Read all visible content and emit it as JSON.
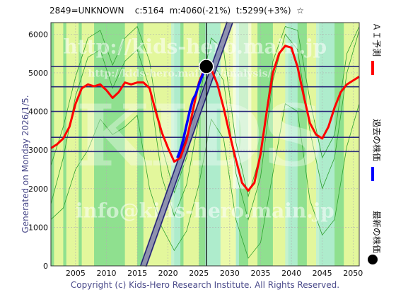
{
  "header": {
    "code": "2849=UNKNOWN",
    "c": "c:5164",
    "m": "m:4060(-21%)",
    "t": "t:5299(+3%)",
    "star": "☆"
  },
  "generated": "Generated on Monday 2026/1/5.",
  "copyright": "Copyright (c) Kids-Hero Research Institute. All Rights Reserved.",
  "watermarks": [
    "http://kids-hero.main.jp",
    "http://kids-hero.main.jp/analysis/",
    "info@kids-hero.main.jp",
    "KIDS"
  ],
  "legend": {
    "ai": "ＡＩ予測",
    "past": "過去の株価",
    "latest": "最新の株価"
  },
  "colors": {
    "ai": "#ff0000",
    "past": "#0000ff",
    "latest": "#000000",
    "hline": "#2a2a7a",
    "band_green": "#8fe08f",
    "band_yellow": "#ffffa0",
    "band_cyan": "#b8f0e0",
    "trend": "#202070"
  },
  "chart_data": {
    "type": "line",
    "xlim": [
      2001,
      2051
    ],
    "ylim": [
      0,
      6300
    ],
    "xticks": [
      2005,
      2010,
      2015,
      2020,
      2025,
      2030,
      2035,
      2040,
      2045,
      2050
    ],
    "yticks": [
      0,
      1000,
      2000,
      3000,
      4000,
      5000,
      6000
    ],
    "hlines": [
      5164,
      4640,
      4000,
      3330,
      2960
    ],
    "vline": 2026.2,
    "latest_point": {
      "x": 2026.2,
      "y": 5164
    },
    "series": [
      {
        "name": "ＡＩ予測",
        "x": [
          2001,
          2002,
          2003,
          2004,
          2005,
          2006,
          2007,
          2008,
          2009,
          2010,
          2011,
          2012,
          2013,
          2014,
          2015,
          2016,
          2017,
          2018,
          2019,
          2020,
          2021,
          2022,
          2023,
          2024,
          2025,
          2026,
          2027,
          2028,
          2029,
          2030,
          2031,
          2032,
          2033,
          2034,
          2035,
          2036,
          2037,
          2038,
          2039,
          2040,
          2041,
          2042,
          2043,
          2044,
          2045,
          2046,
          2047,
          2048,
          2049,
          2050,
          2051
        ],
        "values": [
          3050,
          3150,
          3300,
          3600,
          4200,
          4600,
          4700,
          4650,
          4700,
          4550,
          4350,
          4500,
          4750,
          4700,
          4750,
          4750,
          4600,
          4000,
          3450,
          3050,
          2700,
          2800,
          3250,
          4000,
          4750,
          5150,
          5100,
          4700,
          4100,
          3400,
          2750,
          2150,
          1950,
          2150,
          2900,
          4000,
          5000,
          5500,
          5700,
          5650,
          5150,
          4400,
          3700,
          3400,
          3300,
          3600,
          4100,
          4500,
          4700,
          4800,
          4900
        ]
      },
      {
        "name": "過去の株価",
        "x": [
          2021.5,
          2022,
          2022.5,
          2023,
          2023.5,
          2024,
          2024.5,
          2025,
          2025.5,
          2026.2
        ],
        "values": [
          2800,
          3000,
          3300,
          3650,
          4000,
          4300,
          4450,
          4700,
          4900,
          5164
        ]
      }
    ],
    "trend_line": {
      "x": [
        2016,
        2030
      ],
      "values": [
        0,
        6300
      ]
    }
  }
}
